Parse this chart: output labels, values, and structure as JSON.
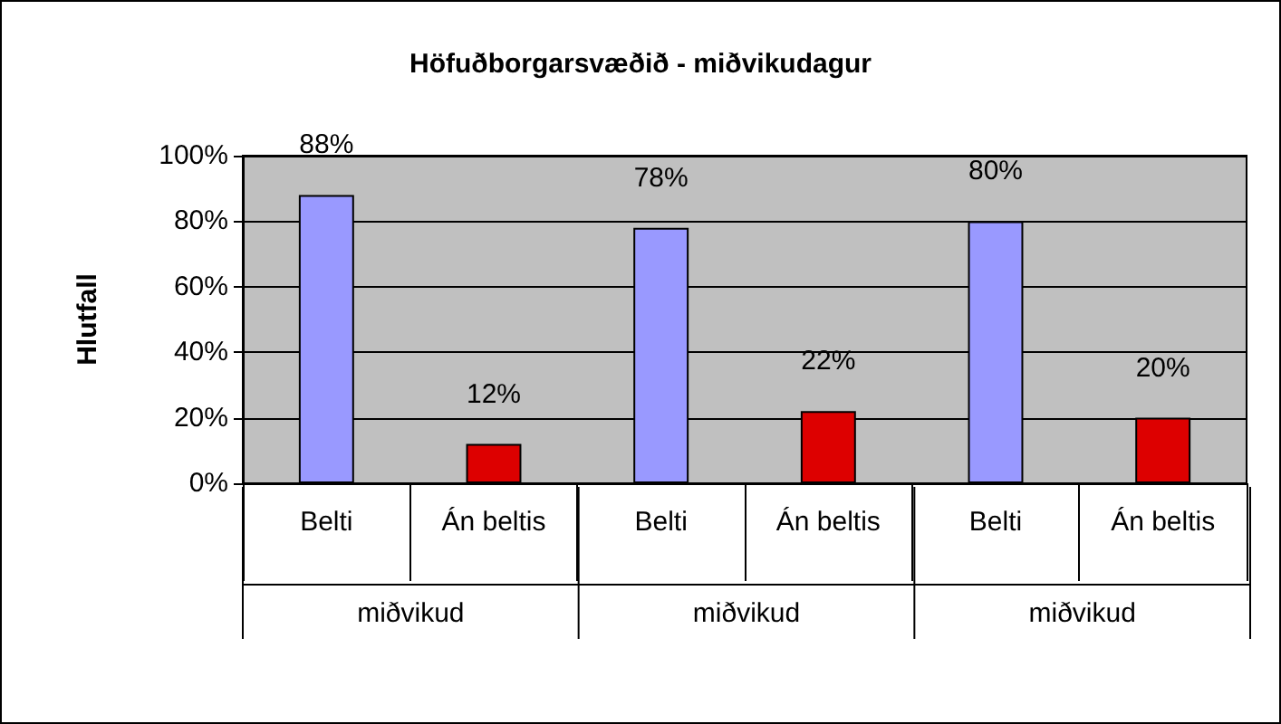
{
  "chart_data": {
    "type": "bar",
    "title": "Höfuðborgarsvæðið - miðvikudagur",
    "ylabel": "Hlutfall",
    "categories": [
      "Belti",
      "Án beltis",
      "Belti",
      "Án beltis",
      "Belti",
      "Án beltis"
    ],
    "values": [
      88,
      12,
      78,
      22,
      80,
      20
    ],
    "colors": [
      "#9999ff",
      "#dd0000",
      "#9999ff",
      "#dd0000",
      "#9999ff",
      "#dd0000"
    ],
    "value_labels": [
      "88%",
      "12%",
      "78%",
      "22%",
      "80%",
      "20%"
    ],
    "ylim": [
      0,
      100
    ],
    "yticks": [
      {
        "value": 0,
        "label": "0%"
      },
      {
        "value": 20,
        "label": "20%"
      },
      {
        "value": 40,
        "label": "40%"
      },
      {
        "value": 60,
        "label": "60%"
      },
      {
        "value": 80,
        "label": "80%"
      },
      {
        "value": 100,
        "label": "100%"
      }
    ],
    "grid": "y",
    "annotations": [
      "miðvikud",
      "miðvikud",
      "miðvikud"
    ]
  }
}
